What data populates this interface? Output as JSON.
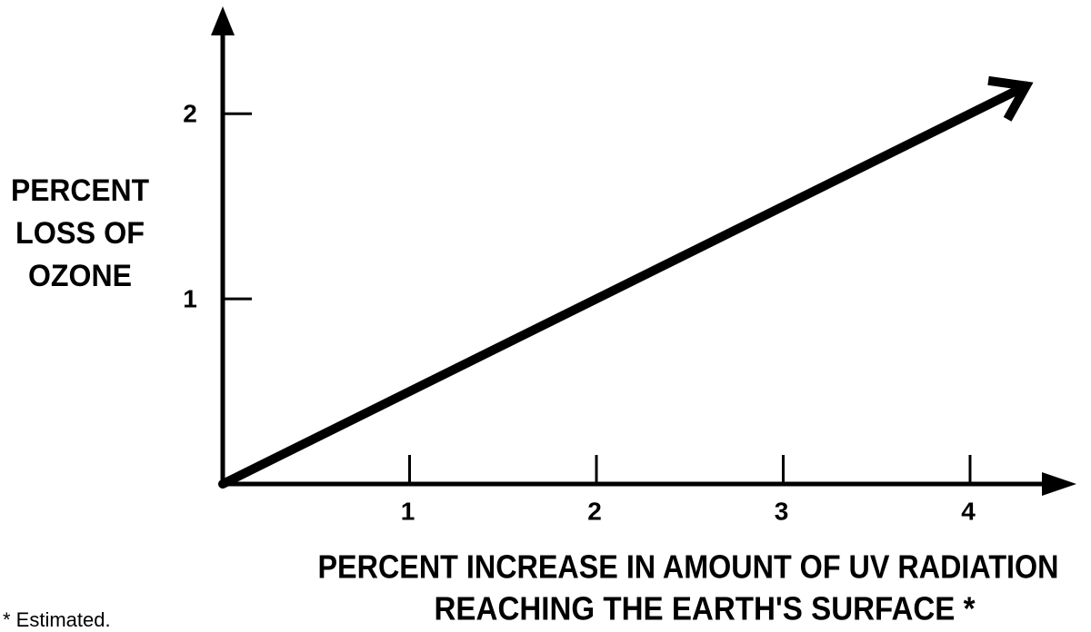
{
  "chart_data": {
    "type": "line",
    "ylabel": [
      "PERCENT",
      "LOSS OF",
      "OZONE"
    ],
    "xlabel": [
      "PERCENT INCREASE IN AMOUNT OF UV RADIATION",
      "REACHING THE EARTH'S SURFACE *"
    ],
    "note": "* Estimated.",
    "x": [
      0,
      4.3
    ],
    "values": [
      0,
      2.15
    ],
    "color": "#000000",
    "xlim": [
      0,
      4.55
    ],
    "ylim": [
      0,
      2.58
    ],
    "xticks": [
      1,
      2,
      3,
      4
    ],
    "yticks": [
      1,
      2
    ],
    "grid": false
  }
}
